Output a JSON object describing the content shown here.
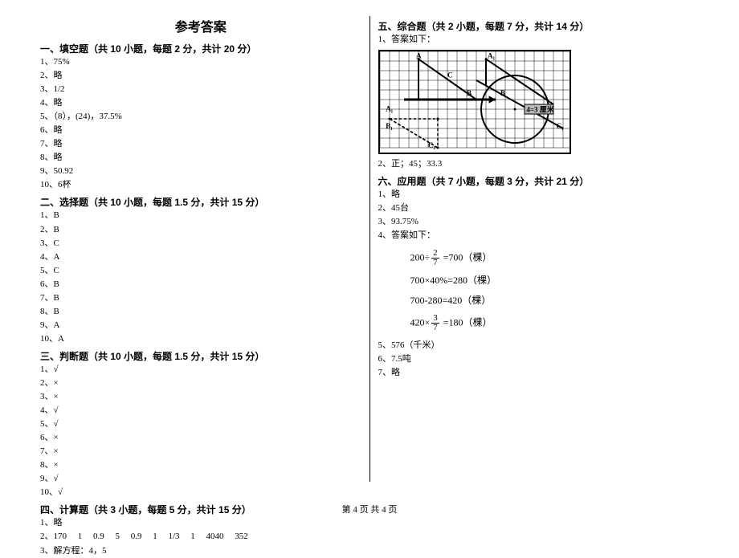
{
  "title": "参考答案",
  "footer": "第 4 页  共 4 页",
  "sections": {
    "s1": {
      "head": "一、填空题（共 10 小题，每题 2 分，共计 20 分）",
      "items": [
        "1、75%",
        "2、略",
        "3、1/2",
        "4、略",
        "5、（8），(24)，37.5%",
        "6、略",
        "7、略",
        "8、略",
        "9、50.92",
        "10、6杯"
      ]
    },
    "s2": {
      "head": "二、选择题（共 10 小题，每题 1.5 分，共计 15 分）",
      "items": [
        "1、B",
        "2、B",
        "3、C",
        "4、A",
        "5、C",
        "6、B",
        "7、B",
        "8、B",
        "9、A",
        "10、A"
      ]
    },
    "s3": {
      "head": "三、判断题（共 10 小题，每题 1.5 分，共计 15 分）",
      "items": [
        "1、√",
        "2、×",
        "3、×",
        "4、√",
        "5、√",
        "6、×",
        "7、×",
        "8、×",
        "9、√",
        "10、√"
      ]
    },
    "s4": {
      "head": "四、计算题（共 3 小题，每题 5 分，共计 15 分）",
      "items": [
        "1、略",
        "2、170     1     0.9     5     0.9     1     1/3     1     4040     352",
        "3、解方程：4，5"
      ]
    },
    "s5": {
      "head": "五、综合题（共 2 小题，每题 7 分，共计 14 分）",
      "items_before": [
        "1、答案如下："
      ],
      "items_after": [
        "2、正；45；33.3"
      ]
    },
    "s6": {
      "head": "六、应用题（共 7 小题，每题 3 分，共计 21 分）",
      "items_before": [
        "1、略",
        "2、45台",
        "3、93.75%",
        "4、答案如下："
      ],
      "eq1_a": "200÷",
      "eq1_n": "2",
      "eq1_d": "7",
      "eq1_b": " =700（棵）",
      "eq2": "700×40%=280（棵）",
      "eq3": "700-280=420（棵）",
      "eq4_a": "420×",
      "eq4_n": "3",
      "eq4_d": "7",
      "eq4_b": " =180（棵）",
      "items_after": [
        "5、576（千米）",
        "6、7.5吨",
        "7、略"
      ]
    }
  },
  "diagram": {
    "grid_step": 12,
    "cols": 20,
    "rows": 10,
    "labels": {
      "A1_top": "A",
      "A1_primetop": "A₁",
      "C_top": "C",
      "B_top": "B",
      "A_left": "A₁",
      "B_left": "B₁",
      "C_left_low": "C₁",
      "B_right": "B",
      "C_right": "C₁",
      "unit": "4=3 厘米"
    }
  }
}
